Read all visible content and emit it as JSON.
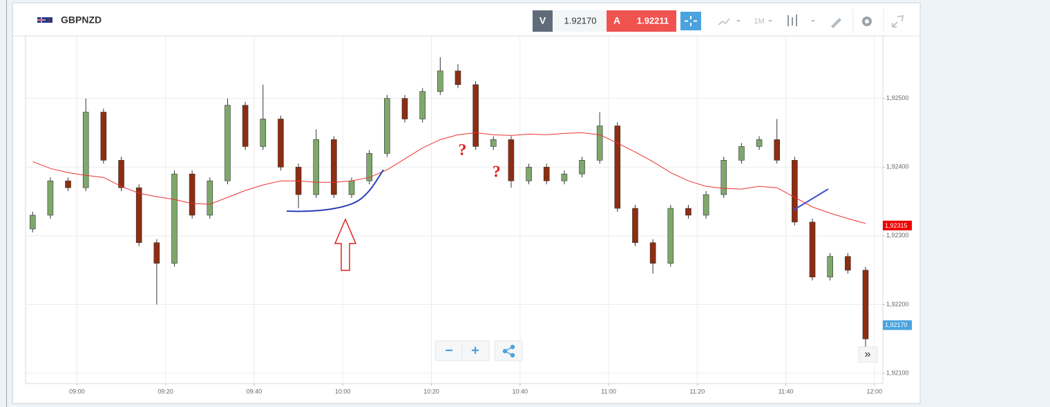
{
  "header": {
    "symbol": "GBPNZD",
    "sell_label": "V",
    "sell_price": "1.92170",
    "buy_label": "A",
    "buy_price": "1.92211",
    "timeframe": "1M"
  },
  "controls": {
    "zoom_out": "−",
    "zoom_in": "+",
    "scroll": "»"
  },
  "chart_data": {
    "type": "candlestick",
    "x": [
      530,
      534,
      538,
      542,
      546,
      550,
      554,
      558,
      562,
      566,
      570,
      574,
      578,
      582,
      586,
      590,
      594,
      598,
      602,
      606,
      610,
      614,
      618,
      622,
      626,
      630,
      634,
      638,
      642,
      646,
      650,
      654,
      658,
      662,
      666,
      670,
      674,
      678,
      682,
      686,
      690,
      694,
      698,
      702,
      706,
      710,
      714,
      718
    ],
    "open": [
      1.9231,
      1.9233,
      1.9238,
      1.9237,
      1.9248,
      1.9241,
      1.9237,
      1.9229,
      1.9226,
      1.9239,
      1.9233,
      1.9238,
      1.9249,
      1.9243,
      1.9247,
      1.924,
      1.9236,
      1.9244,
      1.9236,
      1.9238,
      1.9242,
      1.925,
      1.9247,
      1.9251,
      1.9254,
      1.9252,
      1.9243,
      1.9244,
      1.9238,
      1.924,
      1.9238,
      1.9239,
      1.9241,
      1.9246,
      1.9234,
      1.9229,
      1.9226,
      1.9234,
      1.9233,
      1.9236,
      1.9241,
      1.9243,
      1.9244,
      1.9241,
      1.9232,
      1.9224,
      1.9227,
      1.9225
    ],
    "high": [
      1.92335,
      1.92385,
      1.92385,
      1.925,
      1.92485,
      1.92415,
      1.92375,
      1.92295,
      1.92395,
      1.92395,
      1.92385,
      1.925,
      1.92495,
      1.9252,
      1.92475,
      1.92405,
      1.92455,
      1.92445,
      1.92385,
      1.92425,
      1.92505,
      1.92505,
      1.92515,
      1.9256,
      1.9255,
      1.92525,
      1.92445,
      1.92445,
      1.92405,
      1.92405,
      1.92395,
      1.92415,
      1.9248,
      1.92465,
      1.92345,
      1.92295,
      1.92345,
      1.92345,
      1.92365,
      1.92415,
      1.92435,
      1.92445,
      1.9247,
      1.92415,
      1.92325,
      1.92275,
      1.92275,
      1.92255
    ],
    "low": [
      1.92305,
      1.92325,
      1.92365,
      1.92365,
      1.92405,
      1.92365,
      1.92285,
      1.922,
      1.92255,
      1.92325,
      1.92325,
      1.92375,
      1.92425,
      1.92425,
      1.92395,
      1.9234,
      1.92355,
      1.92355,
      1.92355,
      1.92375,
      1.92415,
      1.92465,
      1.92465,
      1.92505,
      1.92515,
      1.92425,
      1.92425,
      1.9237,
      1.92375,
      1.92375,
      1.92375,
      1.92385,
      1.92405,
      1.92335,
      1.92285,
      1.92245,
      1.92255,
      1.92325,
      1.92325,
      1.92355,
      1.92405,
      1.92425,
      1.92405,
      1.92315,
      1.92235,
      1.92235,
      1.92245,
      1.9213
    ],
    "close": [
      1.9233,
      1.9238,
      1.9237,
      1.9248,
      1.9241,
      1.9237,
      1.9229,
      1.9226,
      1.9239,
      1.9233,
      1.9238,
      1.9249,
      1.9243,
      1.9247,
      1.924,
      1.9236,
      1.9244,
      1.9236,
      1.9238,
      1.9242,
      1.925,
      1.9247,
      1.9251,
      1.9254,
      1.9252,
      1.9243,
      1.9244,
      1.9238,
      1.924,
      1.9238,
      1.9239,
      1.9241,
      1.9246,
      1.9234,
      1.9229,
      1.9226,
      1.9234,
      1.9233,
      1.9236,
      1.9241,
      1.9243,
      1.9244,
      1.9241,
      1.9232,
      1.9224,
      1.9227,
      1.9225,
      1.9215
    ],
    "ma_values": [
      1.92408,
      1.92398,
      1.92392,
      1.92388,
      1.92385,
      1.92372,
      1.92362,
      1.92357,
      1.92353,
      1.92347,
      1.92346,
      1.92356,
      1.92366,
      1.92374,
      1.9238,
      1.9238,
      1.92378,
      1.92378,
      1.9238,
      1.92385,
      1.92396,
      1.92412,
      1.92428,
      1.9244,
      1.92447,
      1.9245,
      1.92447,
      1.92446,
      1.92448,
      1.92447,
      1.92449,
      1.9245,
      1.92447,
      1.92435,
      1.92422,
      1.92408,
      1.92392,
      1.9238,
      1.92372,
      1.92369,
      1.92368,
      1.92372,
      1.9237,
      1.92356,
      1.92342,
      1.92333,
      1.92325,
      1.92318
    ],
    "ma_color": "#ee3030",
    "up_color": "#7fa86c",
    "down_color": "#8e2d12",
    "xlim": [
      528.4,
      721.9
    ],
    "xticks": [
      {
        "value": 540,
        "label": "09:00"
      },
      {
        "value": 560,
        "label": "09:20"
      },
      {
        "value": 580,
        "label": "09:40"
      },
      {
        "value": 600,
        "label": "10:00"
      },
      {
        "value": 620,
        "label": "10:20"
      },
      {
        "value": 640,
        "label": "10:40"
      },
      {
        "value": 660,
        "label": "11:00"
      },
      {
        "value": 680,
        "label": "11:20"
      },
      {
        "value": 700,
        "label": "11:40"
      },
      {
        "value": 720,
        "label": "12:00"
      }
    ],
    "ylim": [
      1.92085,
      1.92591
    ],
    "yticks": [
      {
        "value": 1.921,
        "label": "1,92100"
      },
      {
        "value": 1.922,
        "label": "1,92200"
      },
      {
        "value": 1.923,
        "label": "1,92300"
      },
      {
        "value": 1.924,
        "label": "1,92400"
      },
      {
        "value": 1.925,
        "label": "1,92500"
      }
    ],
    "grid": true,
    "markers": [
      {
        "value": 1.92315,
        "label": "1,92315",
        "color": "#ee0000"
      },
      {
        "value": 1.9217,
        "label": "1,92170",
        "color": "#4aa3df"
      }
    ],
    "annotations": [
      {
        "text": "?",
        "x": 627,
        "y": 1.92423
      },
      {
        "text": "?",
        "x": 634.7,
        "y": 1.92391
      }
    ]
  }
}
